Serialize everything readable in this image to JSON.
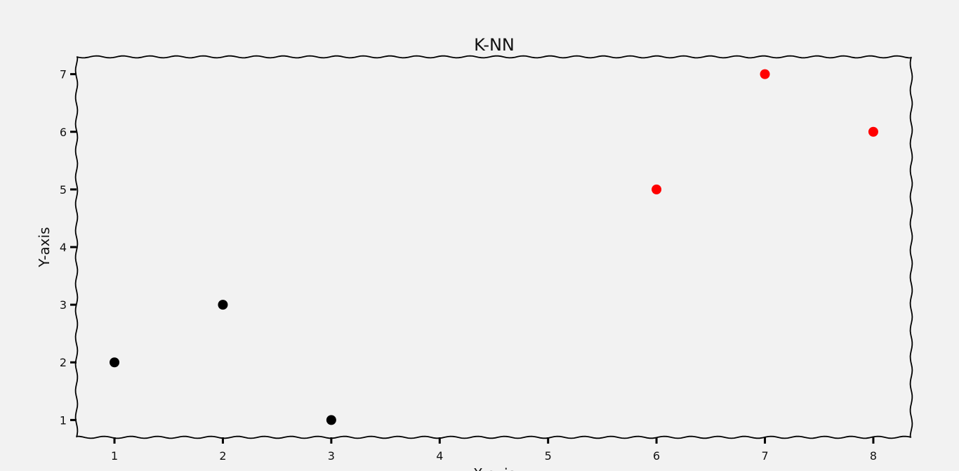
{
  "chart_data": {
    "type": "scatter",
    "title": "K-NN",
    "xlabel": "X-axis",
    "ylabel": "Y-axis",
    "xlim": [
      0.65,
      8.35
    ],
    "ylim": [
      0.7,
      7.3
    ],
    "xticks": [
      1,
      2,
      3,
      4,
      5,
      6,
      7,
      8
    ],
    "yticks": [
      1,
      2,
      3,
      4,
      5,
      6,
      7
    ],
    "grid": false,
    "series": [
      {
        "color": "#000000",
        "points": [
          {
            "x": 1,
            "y": 2
          },
          {
            "x": 2,
            "y": 3
          },
          {
            "x": 3,
            "y": 1
          }
        ]
      },
      {
        "color": "#ff0000",
        "points": [
          {
            "x": 6,
            "y": 5
          },
          {
            "x": 7,
            "y": 7
          },
          {
            "x": 8,
            "y": 6
          }
        ]
      }
    ]
  }
}
